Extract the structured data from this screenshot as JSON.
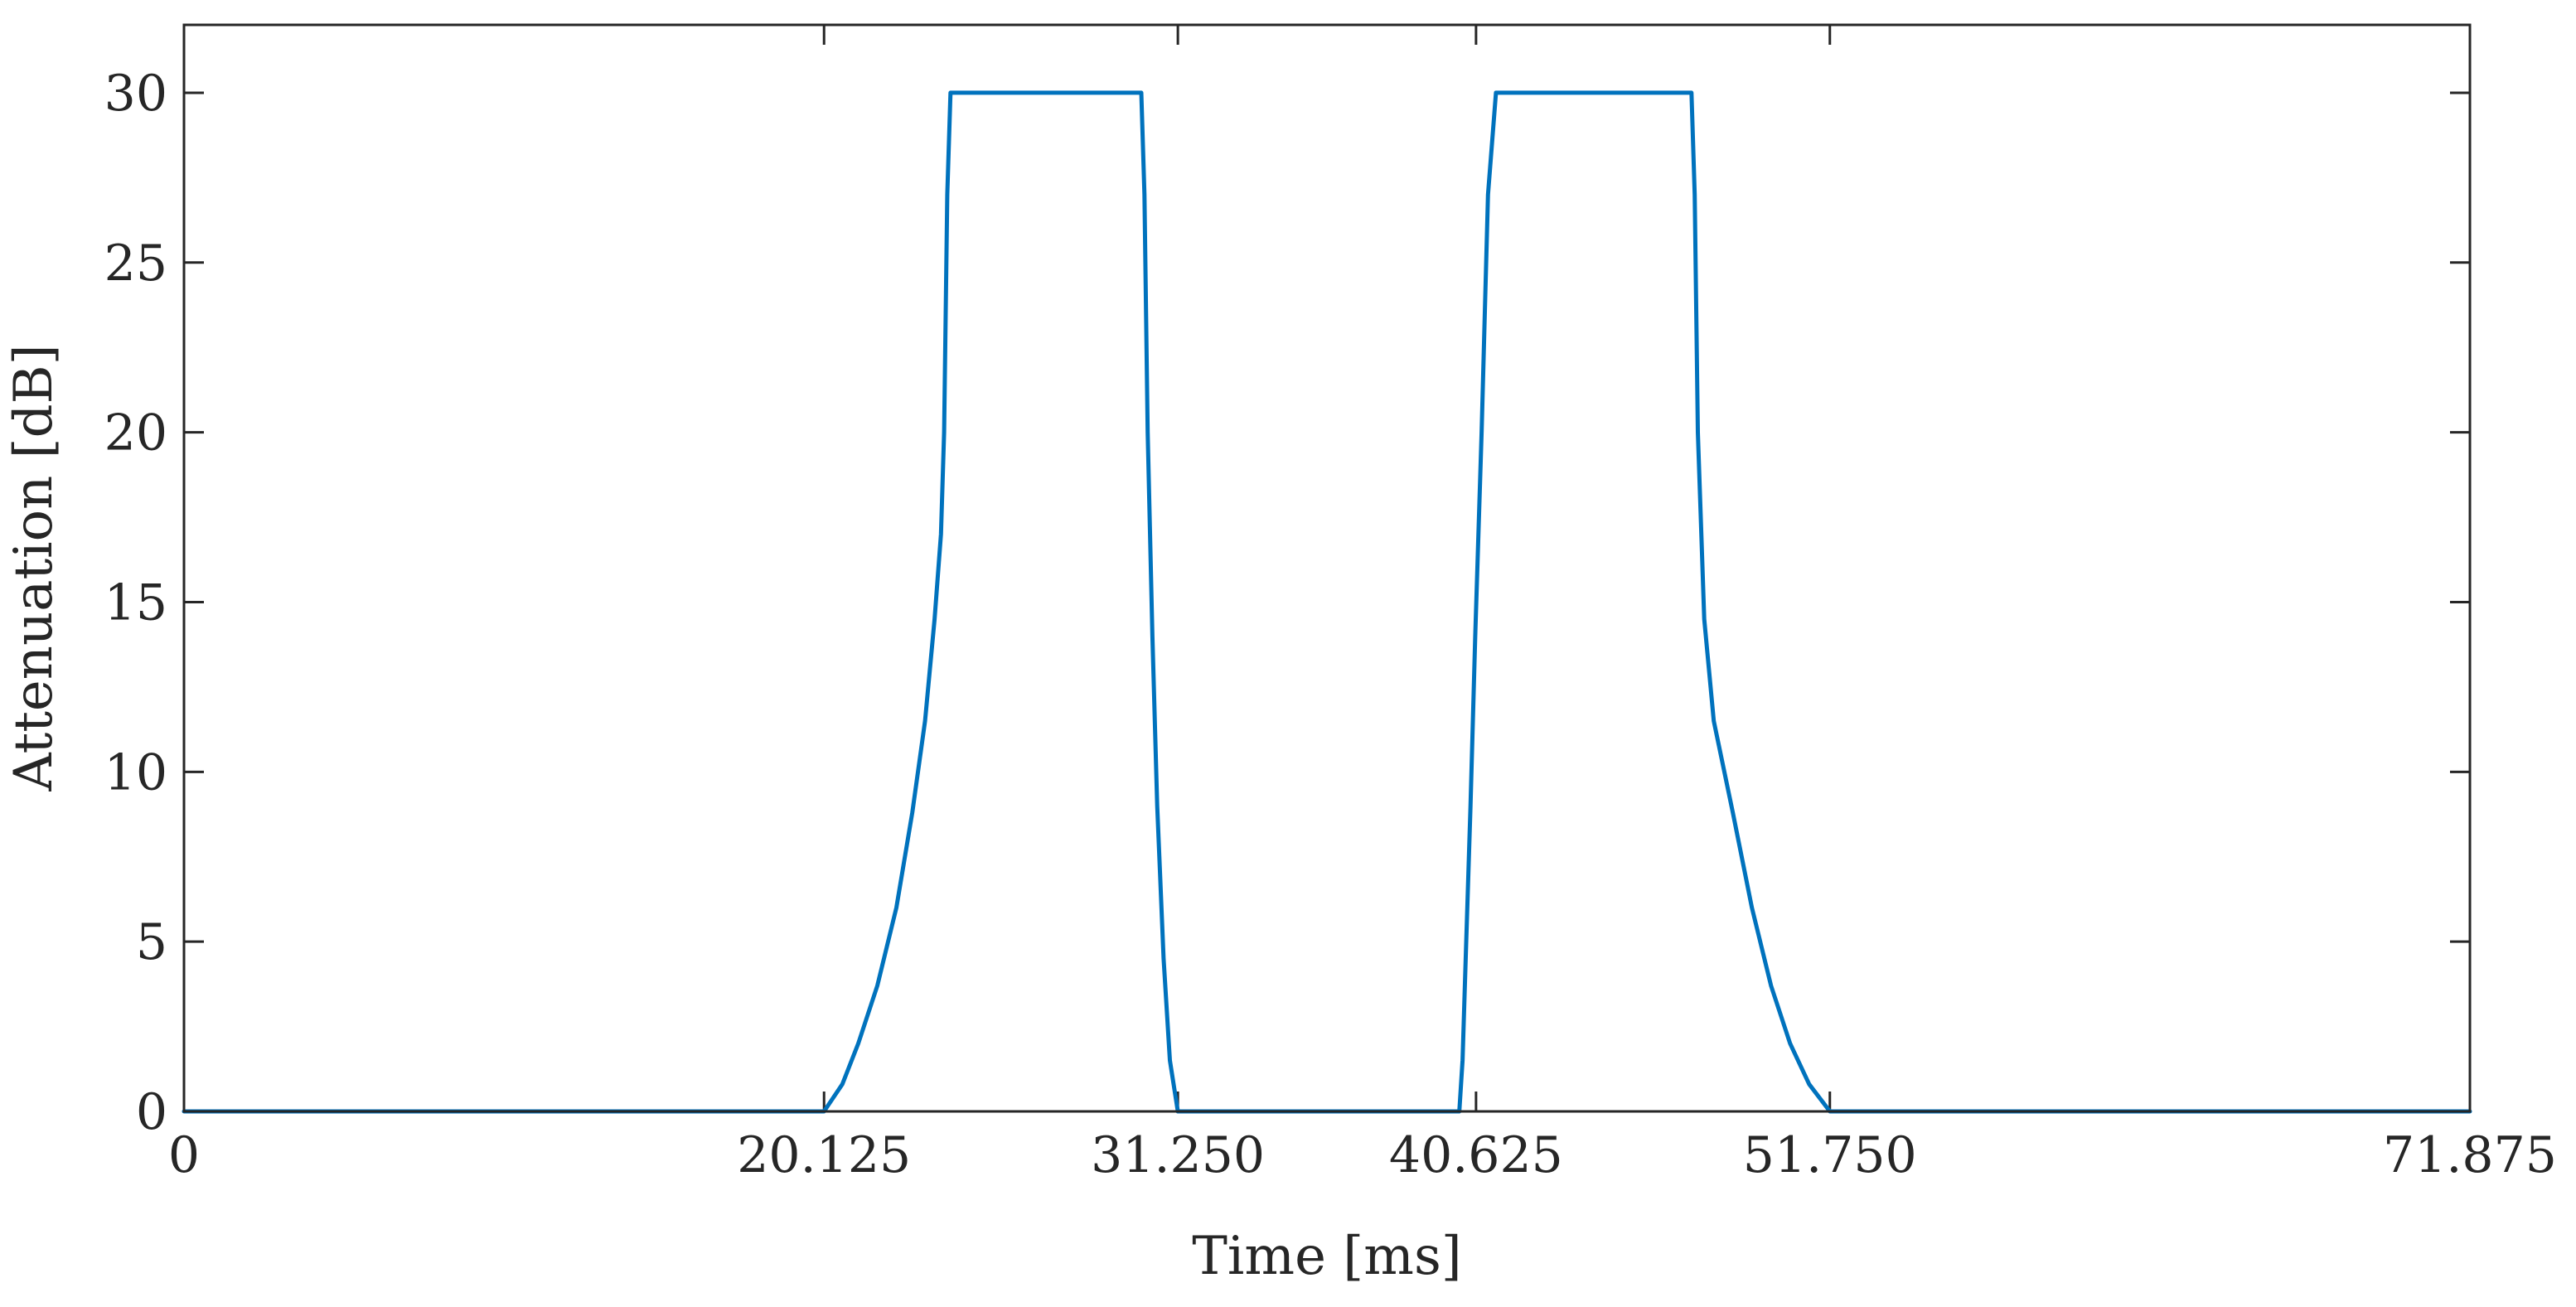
{
  "chart_data": {
    "type": "line",
    "xlabel": "Time [ms]",
    "ylabel": "Attenuation [dB]",
    "xlim": [
      0,
      71.875
    ],
    "ylim": [
      0,
      32
    ],
    "xticks": [
      0,
      20.125,
      31.25,
      40.625,
      51.75,
      71.875
    ],
    "xtick_labels": [
      "0",
      "20.125",
      "31.250",
      "40.625",
      "51.750",
      "71.875"
    ],
    "yticks": [
      0,
      5,
      10,
      15,
      20,
      25,
      30
    ],
    "ytick_labels": [
      "0",
      "5",
      "10",
      "15",
      "20",
      "25",
      "30"
    ],
    "grid": false,
    "line_color": "#0072BD",
    "axis_color": "#262626",
    "series": [
      {
        "x": [
          0,
          20.125,
          20.7,
          21.2,
          21.8,
          22.4,
          22.9,
          23.3,
          23.6,
          23.8,
          23.9,
          24.0,
          24.1,
          30.1,
          30.2,
          30.3,
          30.45,
          30.6,
          30.8,
          31.0,
          31.25,
          40.1,
          40.2,
          40.3,
          40.45,
          40.6,
          40.8,
          41.0,
          41.25,
          47.4,
          47.5,
          47.6,
          47.8,
          48.1,
          48.7,
          49.3,
          49.9,
          50.5,
          51.1,
          51.75,
          71.875
        ],
        "y": [
          0,
          0,
          0.8,
          2.0,
          3.7,
          6.0,
          8.8,
          11.5,
          14.5,
          17.0,
          20.0,
          27.0,
          30,
          30,
          27.0,
          20.0,
          14.0,
          9.0,
          4.5,
          1.5,
          0,
          0,
          1.5,
          4.5,
          9.0,
          14.0,
          20.0,
          27.0,
          30,
          30,
          27.0,
          20.0,
          14.5,
          11.5,
          8.8,
          6.0,
          3.7,
          2.0,
          0.8,
          0,
          0
        ]
      }
    ]
  }
}
